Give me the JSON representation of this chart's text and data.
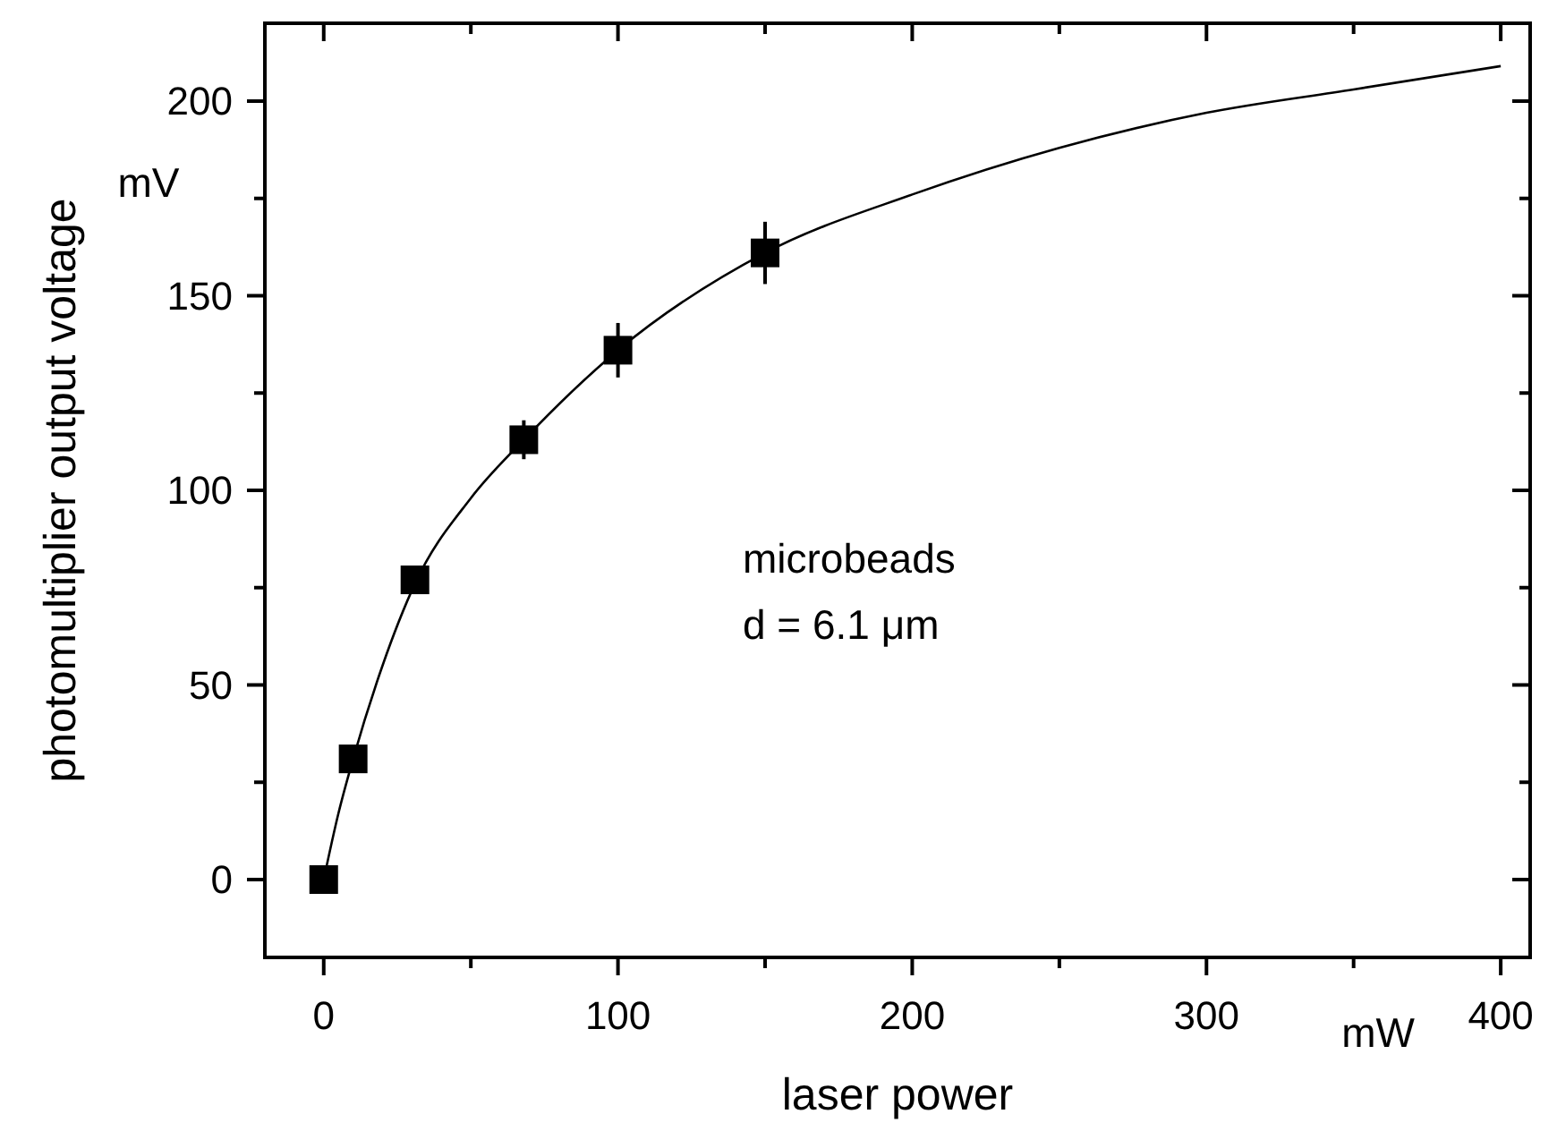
{
  "chart_data": {
    "type": "scatter",
    "xlabel": "laser power",
    "ylabel": "photomultiplier output voltage",
    "xlim": [
      -20,
      410
    ],
    "ylim": [
      -20,
      220
    ],
    "xticks": [
      0,
      {
        "value": 50,
        "label": null
      },
      100,
      {
        "value": 150,
        "label": null
      },
      200,
      {
        "value": 250,
        "label": null
      },
      300,
      {
        "value": 350,
        "label": null
      },
      400
    ],
    "yticks": [
      0,
      {
        "value": 25,
        "label": null
      },
      50,
      {
        "value": 75,
        "label": null
      },
      100,
      {
        "value": 125,
        "label": null
      },
      150,
      {
        "value": 175,
        "label": null
      },
      200
    ],
    "grid": false,
    "annotations": [
      "mV",
      "mW",
      "microbeads",
      "d = 6.1 μm"
    ],
    "series": [
      {
        "color": "#000000",
        "marker": "square",
        "x": [
          0,
          10,
          31,
          68,
          100,
          150
        ],
        "values": [
          0,
          31,
          77,
          113,
          136,
          161
        ],
        "errors": [
          null,
          null,
          3,
          5,
          7,
          8
        ]
      },
      {
        "type": "line",
        "color": "#000000",
        "marker": "none",
        "x": [
          0,
          5,
          10,
          20,
          31,
          50,
          68,
          100,
          150,
          200,
          250,
          300,
          350,
          400
        ],
        "values": [
          0,
          17,
          31,
          55,
          76,
          98,
          113,
          136,
          161,
          176,
          188,
          197,
          203,
          209
        ]
      }
    ]
  }
}
